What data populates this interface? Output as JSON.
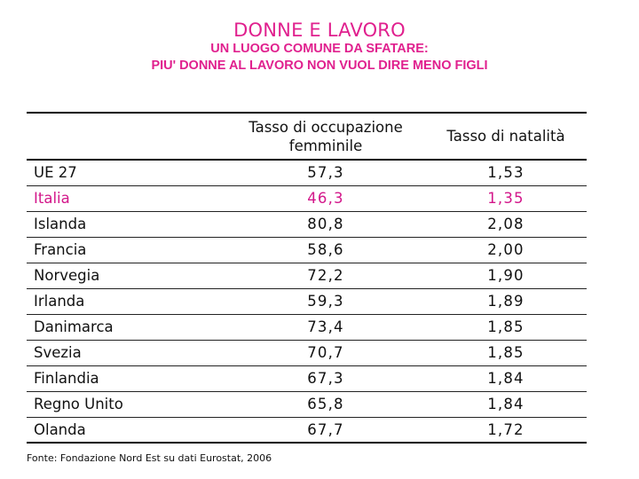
{
  "title": "DONNE E LAVORO",
  "subtitle_line1": "UN LUOGO COMUNE DA SFATARE:",
  "subtitle_line2": "PIU' DONNE AL LAVORO NON VUOL DIRE MENO FIGLI",
  "columns": {
    "country": "",
    "occupation_line1": "Tasso di occupazione",
    "occupation_line2": "femminile",
    "birth_rate": "Tasso di natalità"
  },
  "rows": [
    {
      "country": "UE 27",
      "occupation": "57,3",
      "birth_rate": "1,53"
    },
    {
      "country": "Italia",
      "occupation": "46,3",
      "birth_rate": "1,35"
    },
    {
      "country": "Islanda",
      "occupation": "80,8",
      "birth_rate": "2,08"
    },
    {
      "country": "Francia",
      "occupation": "58,6",
      "birth_rate": "2,00"
    },
    {
      "country": "Norvegia",
      "occupation": "72,2",
      "birth_rate": "1,90"
    },
    {
      "country": "Irlanda",
      "occupation": "59,3",
      "birth_rate": "1,89"
    },
    {
      "country": "Danimarca",
      "occupation": "73,4",
      "birth_rate": "1,85"
    },
    {
      "country": "Svezia",
      "occupation": "70,7",
      "birth_rate": "1,85"
    },
    {
      "country": "Finlandia",
      "occupation": "67,3",
      "birth_rate": "1,84"
    },
    {
      "country": "Regno Unito",
      "occupation": "65,8",
      "birth_rate": "1,84"
    },
    {
      "country": "Olanda",
      "occupation": "67,7",
      "birth_rate": "1,72"
    }
  ],
  "source": "Fonte: Fondazione Nord Est su dati Eurostat, 2006",
  "colors": {
    "accent": "#e0208e",
    "highlight_row": "#d3178a"
  }
}
